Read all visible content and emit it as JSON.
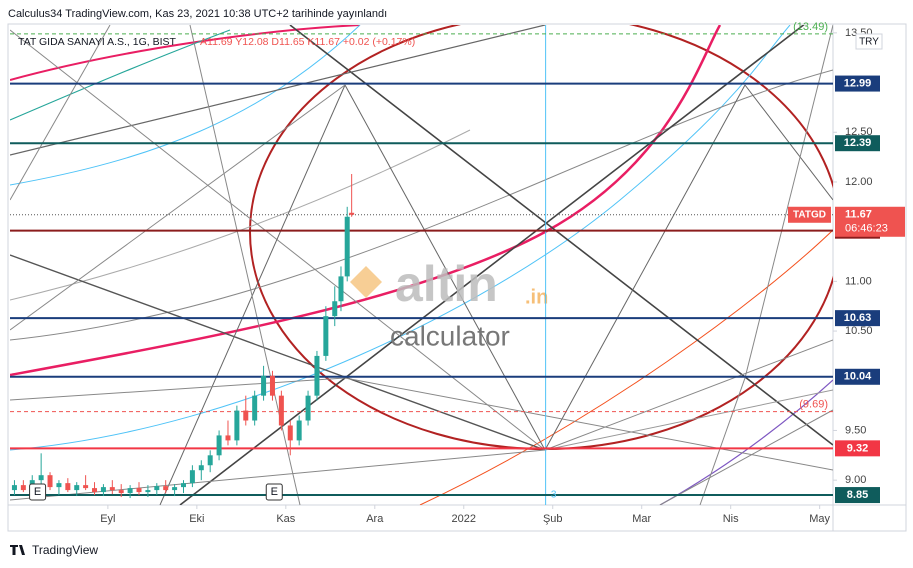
{
  "header": "Calculus34 TradingView.com, Kas 23, 2021 10:38 UTC+2 tarihinde yayınlandı",
  "chart_data": {
    "type": "candlestick",
    "title": "TAT GIDA SANAYI A.S., 1G, BIST",
    "quote": "A11.69 Y12.08 D11.65 K11.67 +0.02 (+0.17%)",
    "currency": "TRY",
    "symbol": "TATGD",
    "x": [
      7.95,
      8.05,
      8.15,
      8.25,
      8.35,
      8.45,
      8.55,
      8.65,
      8.75,
      8.85,
      8.95,
      9.05,
      9.15,
      9.25,
      9.35,
      9.45,
      9.55,
      9.65,
      9.75,
      9.85,
      9.95,
      10.05,
      10.15,
      10.25,
      10.35,
      10.45,
      10.55,
      10.65,
      10.75,
      10.85,
      10.95,
      11.05,
      11.15,
      11.25,
      11.35,
      11.45,
      11.55,
      11.62,
      11.69,
      11.74
    ],
    "open": [
      8.9,
      8.95,
      8.9,
      9.0,
      9.05,
      8.93,
      8.97,
      8.9,
      8.95,
      8.92,
      8.88,
      8.93,
      8.9,
      8.87,
      8.92,
      8.88,
      8.9,
      8.94,
      8.9,
      8.93,
      8.97,
      9.1,
      9.15,
      9.25,
      9.45,
      9.4,
      9.7,
      9.6,
      9.85,
      10.05,
      9.85,
      9.55,
      9.4,
      9.6,
      9.85,
      10.25,
      10.65,
      10.8,
      11.05,
      11.69
    ],
    "high": [
      9.0,
      9.0,
      9.05,
      9.27,
      9.08,
      9.0,
      9.02,
      8.98,
      9.05,
      8.98,
      8.96,
      9.0,
      8.96,
      8.95,
      8.98,
      8.95,
      8.97,
      9.0,
      8.96,
      9.0,
      9.15,
      9.2,
      9.3,
      9.5,
      9.6,
      9.75,
      9.85,
      9.9,
      10.15,
      10.1,
      9.9,
      9.6,
      9.65,
      9.9,
      10.3,
      10.75,
      10.95,
      11.15,
      11.75,
      12.08
    ],
    "low": [
      8.85,
      8.88,
      8.86,
      8.95,
      8.9,
      8.85,
      8.88,
      8.84,
      8.9,
      8.85,
      8.84,
      8.86,
      8.83,
      8.82,
      8.85,
      8.83,
      8.85,
      8.87,
      8.84,
      8.87,
      8.93,
      9.0,
      9.08,
      9.2,
      9.35,
      9.35,
      9.55,
      9.55,
      9.8,
      9.8,
      9.5,
      9.25,
      9.35,
      9.55,
      9.8,
      10.2,
      10.55,
      10.7,
      11.0,
      11.65
    ],
    "close": [
      8.95,
      8.9,
      9.0,
      9.05,
      8.93,
      8.97,
      8.9,
      8.95,
      8.92,
      8.88,
      8.93,
      8.9,
      8.87,
      8.92,
      8.88,
      8.9,
      8.94,
      8.9,
      8.93,
      8.97,
      9.1,
      9.15,
      9.25,
      9.45,
      9.4,
      9.7,
      9.6,
      9.85,
      10.05,
      9.85,
      9.55,
      9.4,
      9.6,
      9.85,
      10.25,
      10.65,
      10.8,
      11.05,
      11.65,
      11.67
    ],
    "up_color": "#26a69a",
    "down_color": "#ef5350",
    "xlim": [
      7.9,
      17.15
    ],
    "xticks": [
      {
        "value": 9,
        "label": "Eyl"
      },
      {
        "value": 10,
        "label": "Eki"
      },
      {
        "value": 11,
        "label": "Kas"
      },
      {
        "value": 12,
        "label": "Ara"
      },
      {
        "value": 13,
        "label": "2022"
      },
      {
        "value": 14,
        "label": "Şub"
      },
      {
        "value": 15,
        "label": "Mar"
      },
      {
        "value": 16,
        "label": "Nis"
      },
      {
        "value": 17,
        "label": "May"
      }
    ],
    "ylim": [
      8.75,
      13.71
    ],
    "yticks": [
      {
        "value": 13.5,
        "label": "13.50"
      },
      {
        "value": 12.5,
        "label": "12.50"
      },
      {
        "value": 12,
        "label": "12.00"
      },
      {
        "value": 11,
        "label": "11.00"
      },
      {
        "value": 10.5,
        "label": "10.50"
      },
      {
        "value": 9.5,
        "label": "9.50"
      },
      {
        "value": 9,
        "label": "9.00"
      }
    ],
    "levels": [
      {
        "value": 12.99,
        "color": "#1a3d7c"
      },
      {
        "value": 12.39,
        "color": "#0f5c5c"
      },
      {
        "value": 11.51,
        "color": "#8b1c1c"
      },
      {
        "value": 10.63,
        "color": "#1a3d7c"
      },
      {
        "value": 10.04,
        "color": "#1a3d7c"
      },
      {
        "value": 9.32,
        "color": "#f23645"
      },
      {
        "value": 8.85,
        "color": "#0f5c5c"
      }
    ],
    "dashed_levels": [
      {
        "value": 13.49,
        "label": "(13.49)",
        "color": "#4caf50"
      },
      {
        "value": 9.69,
        "label": "(9.69)",
        "color": "#ef5350"
      }
    ],
    "last_price": 11.67,
    "countdown": "06:46:23",
    "last_color": "#ef5350",
    "events": [
      "E",
      "E"
    ],
    "event_x": [
      8.21,
      10.87
    ],
    "vline_x": 13.92,
    "vline_label": "3"
  },
  "watermark": {
    "brand": "altin",
    "domain": ".in",
    "tagline": "calculator"
  },
  "footer": "TradingView"
}
